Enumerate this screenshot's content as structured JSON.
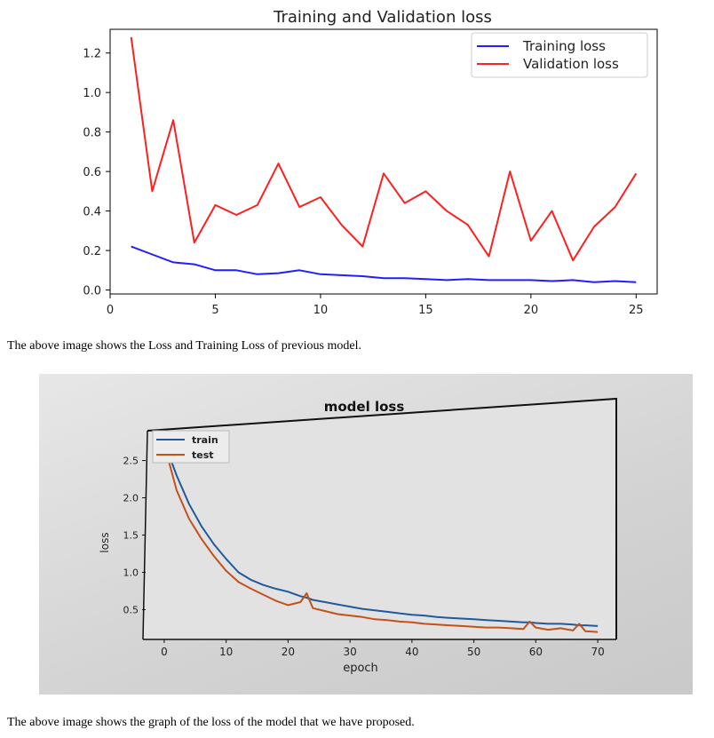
{
  "chart_data": [
    {
      "type": "line",
      "title": "Training and Validation loss",
      "xlabel": "",
      "ylabel": "",
      "xlim": [
        0,
        26
      ],
      "ylim": [
        -0.02,
        1.32
      ],
      "x_ticks": [
        "0",
        "5",
        "10",
        "15",
        "20",
        "25"
      ],
      "y_ticks": [
        "0.0",
        "0.2",
        "0.4",
        "0.6",
        "0.8",
        "1.0",
        "1.2"
      ],
      "legend_position": "top-right",
      "grid": false,
      "x": [
        1,
        2,
        3,
        4,
        5,
        6,
        7,
        8,
        9,
        10,
        11,
        12,
        13,
        14,
        15,
        16,
        17,
        18,
        19,
        20,
        21,
        22,
        23,
        24,
        25
      ],
      "series": [
        {
          "name": "Training loss",
          "color": "#1f1fff",
          "values": [
            0.22,
            0.18,
            0.14,
            0.13,
            0.1,
            0.1,
            0.08,
            0.085,
            0.1,
            0.08,
            0.075,
            0.07,
            0.06,
            0.06,
            0.055,
            0.05,
            0.055,
            0.05,
            0.05,
            0.05,
            0.045,
            0.05,
            0.04,
            0.045,
            0.04
          ]
        },
        {
          "name": "Validation loss",
          "color": "#ff1f1f",
          "values": [
            1.28,
            0.5,
            0.86,
            0.24,
            0.43,
            0.38,
            0.43,
            0.64,
            0.42,
            0.47,
            0.33,
            0.22,
            0.59,
            0.44,
            0.5,
            0.4,
            0.33,
            0.17,
            0.6,
            0.25,
            0.4,
            0.15,
            0.32,
            0.42,
            0.59
          ]
        }
      ]
    },
    {
      "type": "line",
      "title": "model loss",
      "xlabel": "epoch",
      "ylabel": "loss",
      "xlim": [
        -3,
        73
      ],
      "ylim": [
        0.1,
        2.9
      ],
      "x_ticks": [
        "0",
        "10",
        "20",
        "30",
        "40",
        "50",
        "60",
        "70"
      ],
      "y_ticks": [
        "0.5",
        "1.0",
        "1.5",
        "2.0",
        "2.5"
      ],
      "legend_position": "top-left",
      "grid": false,
      "x": [
        0,
        2,
        4,
        6,
        8,
        10,
        12,
        14,
        16,
        18,
        20,
        22,
        23,
        24,
        26,
        28,
        30,
        32,
        34,
        36,
        38,
        40,
        42,
        44,
        46,
        48,
        50,
        52,
        54,
        56,
        58,
        59,
        60,
        62,
        64,
        66,
        67,
        68,
        70
      ],
      "series": [
        {
          "name": "train",
          "color": "#1f5a9c",
          "values": [
            2.75,
            2.3,
            1.92,
            1.62,
            1.38,
            1.18,
            1.0,
            0.9,
            0.83,
            0.78,
            0.74,
            0.68,
            0.66,
            0.63,
            0.6,
            0.57,
            0.54,
            0.51,
            0.49,
            0.47,
            0.45,
            0.43,
            0.42,
            0.4,
            0.39,
            0.38,
            0.37,
            0.36,
            0.35,
            0.34,
            0.33,
            0.33,
            0.32,
            0.31,
            0.31,
            0.3,
            0.29,
            0.29,
            0.28
          ]
        },
        {
          "name": "test",
          "color": "#c4501c",
          "values": [
            2.72,
            2.1,
            1.72,
            1.45,
            1.22,
            1.02,
            0.87,
            0.78,
            0.7,
            0.62,
            0.56,
            0.6,
            0.72,
            0.52,
            0.48,
            0.44,
            0.42,
            0.4,
            0.37,
            0.36,
            0.34,
            0.33,
            0.31,
            0.3,
            0.29,
            0.28,
            0.27,
            0.26,
            0.26,
            0.25,
            0.24,
            0.34,
            0.26,
            0.23,
            0.25,
            0.22,
            0.31,
            0.21,
            0.2
          ]
        }
      ]
    }
  ],
  "captions": {
    "first": "The above image shows the Loss and Training Loss of previous model.",
    "second": "The above image shows the graph of the loss of the model that we have proposed."
  }
}
